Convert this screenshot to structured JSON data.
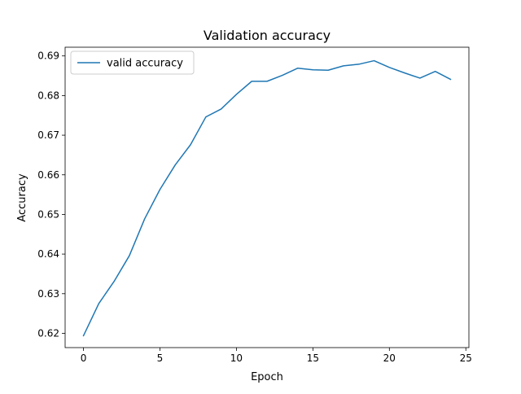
{
  "chart_data": {
    "type": "line",
    "title": "Validation accuracy",
    "xlabel": "Epoch",
    "ylabel": "Accuracy",
    "xlim": [
      -1.2,
      25.2
    ],
    "ylim": [
      0.6164,
      0.6922
    ],
    "xticks": [
      0,
      5,
      10,
      15,
      20,
      25
    ],
    "xtick_labels": [
      "0",
      "5",
      "10",
      "15",
      "20",
      "25"
    ],
    "yticks": [
      0.62,
      0.63,
      0.64,
      0.65,
      0.66,
      0.67,
      0.68,
      0.69
    ],
    "ytick_labels": [
      "0.62",
      "0.63",
      "0.64",
      "0.65",
      "0.66",
      "0.67",
      "0.68",
      "0.69"
    ],
    "grid": false,
    "legend_position": "upper-left",
    "series": [
      {
        "name": "valid accuracy",
        "color": "#1f77b4",
        "x": [
          0,
          1,
          2,
          3,
          4,
          5,
          6,
          7,
          8,
          9,
          10,
          11,
          12,
          13,
          14,
          15,
          16,
          17,
          18,
          19,
          20,
          21,
          22,
          23,
          24
        ],
        "y": [
          0.6194,
          0.6275,
          0.6331,
          0.6396,
          0.6489,
          0.6563,
          0.6625,
          0.6676,
          0.6746,
          0.6766,
          0.6803,
          0.6836,
          0.6836,
          0.6851,
          0.6869,
          0.6865,
          0.6864,
          0.6875,
          0.6879,
          0.6888,
          0.6871,
          0.6857,
          0.6844,
          0.6861,
          0.6841
        ]
      }
    ]
  }
}
